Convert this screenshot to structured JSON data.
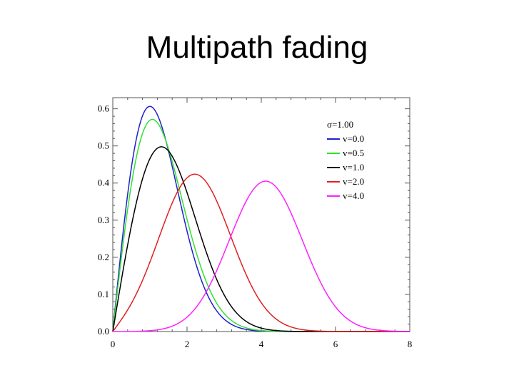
{
  "slide": {
    "title": "Multipath fading"
  },
  "chart_data": {
    "type": "line",
    "xlim": [
      0,
      8
    ],
    "ylim": [
      0,
      0.63
    ],
    "x_ticks": [
      "0",
      "2",
      "4",
      "6",
      "8"
    ],
    "y_ticks": [
      "0.0",
      "0.1",
      "0.2",
      "0.3",
      "0.4",
      "0.5",
      "0.6"
    ],
    "grid": false,
    "legend_position": "top-right",
    "legend_title": "σ=1.00",
    "sigma": 1.0,
    "series": [
      {
        "name": "v=0.0",
        "v": 0.0,
        "color": "#2020d0"
      },
      {
        "name": "v=0.5",
        "v": 0.5,
        "color": "#30e030"
      },
      {
        "name": "v=1.0",
        "v": 1.0,
        "color": "#000000"
      },
      {
        "name": "v=2.0",
        "v": 2.0,
        "color": "#e02020"
      },
      {
        "name": "v=4.0",
        "v": 4.0,
        "color": "#ff20ff"
      }
    ]
  }
}
